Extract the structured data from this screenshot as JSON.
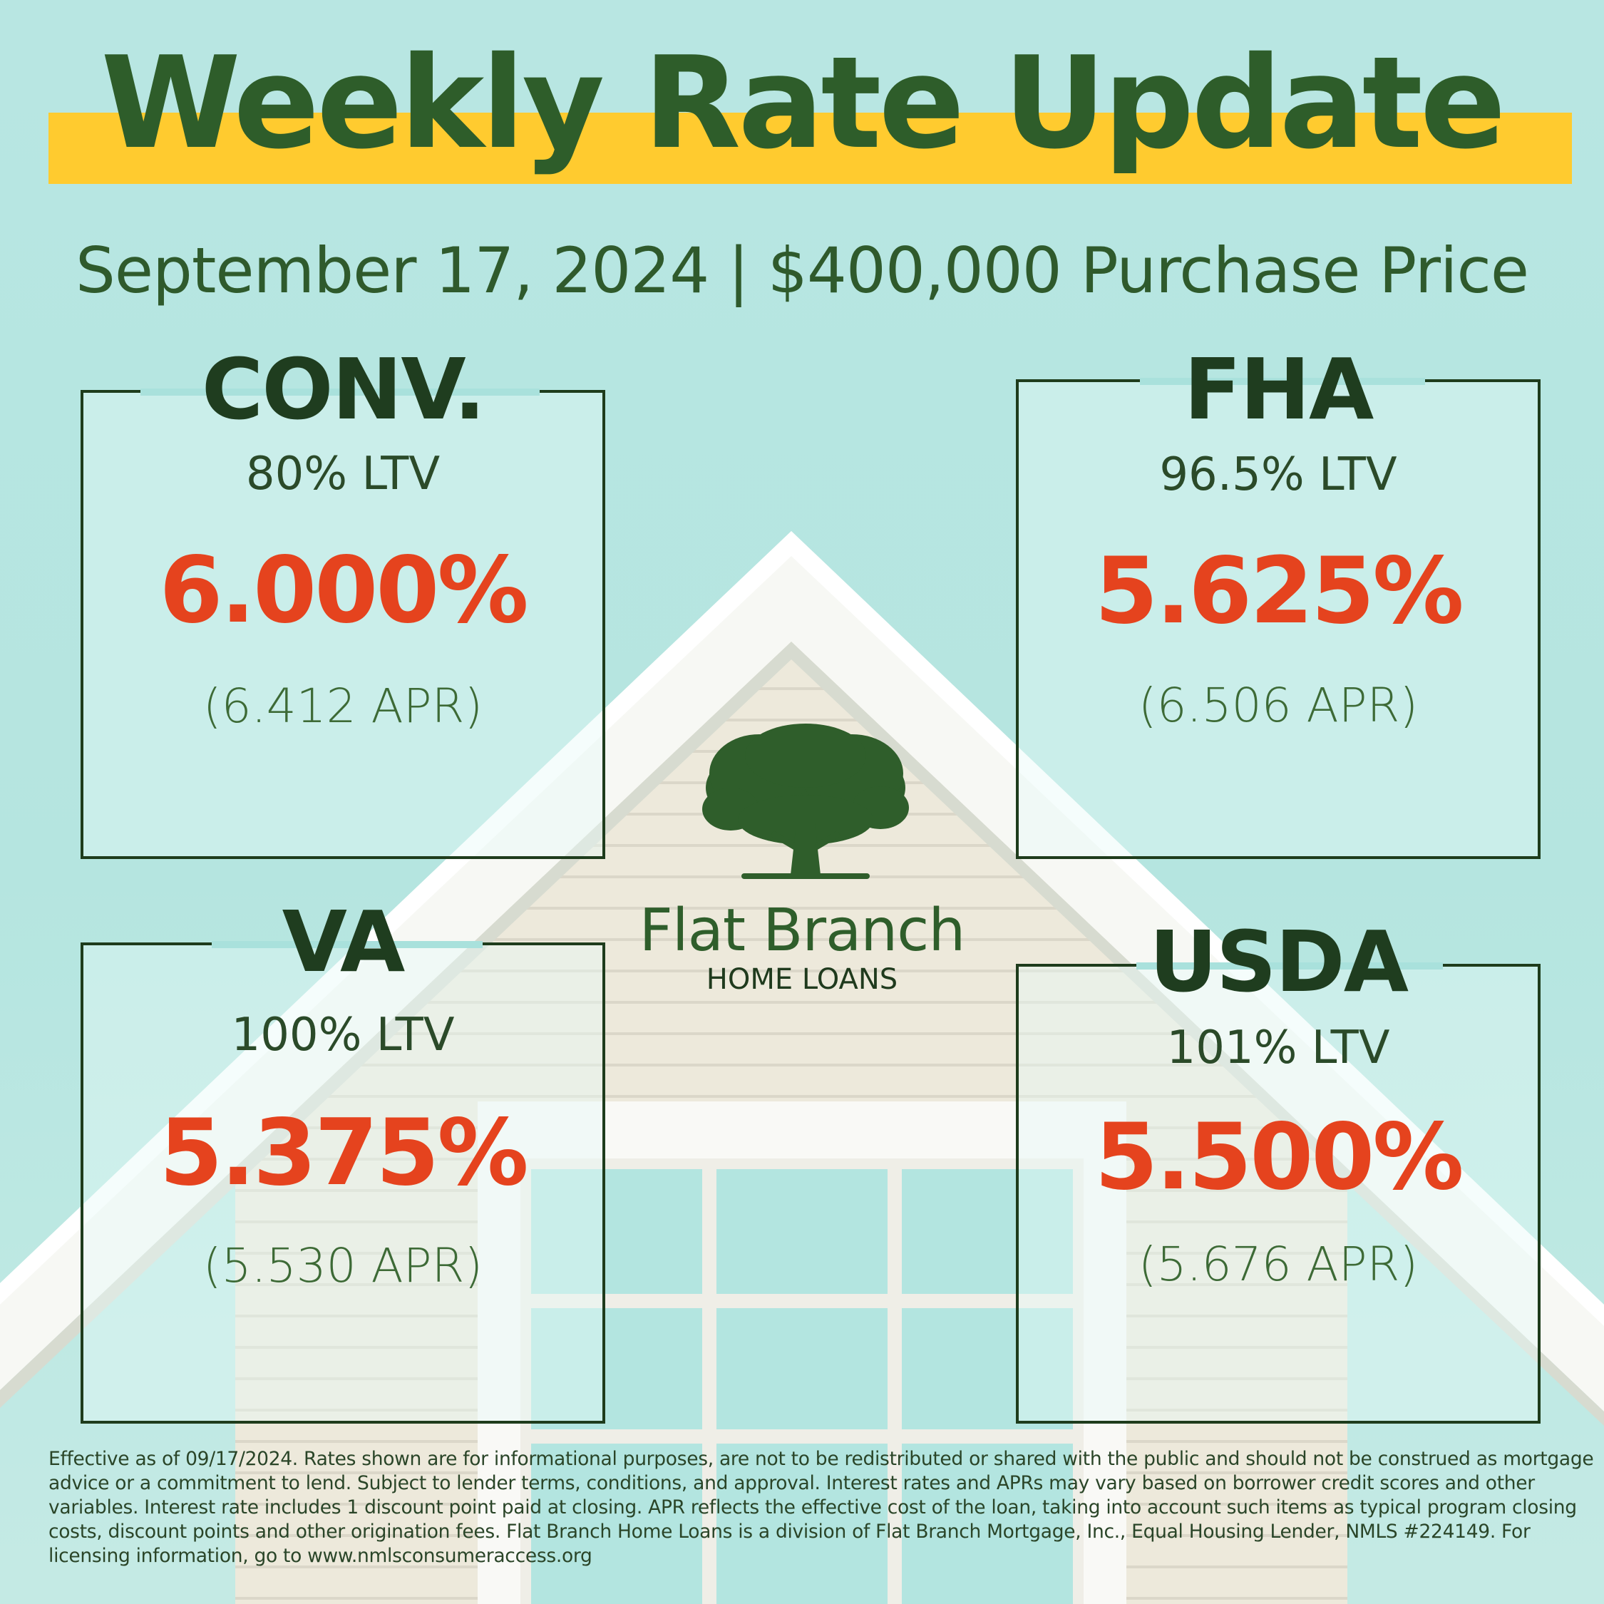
{
  "header": {
    "title": "Weekly Rate Update",
    "subtitle": "September 17, 2024 | $400,000 Purchase Price"
  },
  "cards": [
    {
      "label": "CONV.",
      "ltv": "80% LTV",
      "rate": "6.000%",
      "apr": "(6.412 APR)"
    },
    {
      "label": "FHA",
      "ltv": "96.5% LTV",
      "rate": "5.625%",
      "apr": "(6.506 APR)"
    },
    {
      "label": "VA",
      "ltv": "100% LTV",
      "rate": "5.375%",
      "apr": "(5.530 APR)"
    },
    {
      "label": "USDA",
      "ltv": "101% LTV",
      "rate": "5.500%",
      "apr": "(5.676 APR)"
    }
  ],
  "logo": {
    "name": "Flat Branch",
    "tagline": "HOME LOANS",
    "icon": "tree-icon"
  },
  "disclaimer": "Effective as of 09/17/2024. Rates shown are for informational purposes, are not to be redistributed or shared with the public and should not be construed as mortgage advice or a commitment to lend. Subject to lender terms, conditions, and approval. Interest rates and APRs may vary based on borrower credit scores and other variables. Interest rate includes 1 discount point paid at closing. APR reflects the effective cost of the loan, taking into account such items as typical program closing costs, discount points and other origination fees. Flat Branch Home Loans is a division of Flat Branch Mortgage, Inc., Equal Housing Lender, NMLS #224149. For licensing information, go to www.nmlsconsumeraccess.org",
  "colors": {
    "title_green": "#2e5d2a",
    "highlight_yellow": "#ffcb2f",
    "rate_red": "#e5431e",
    "sky_teal": "#a7e0db"
  }
}
